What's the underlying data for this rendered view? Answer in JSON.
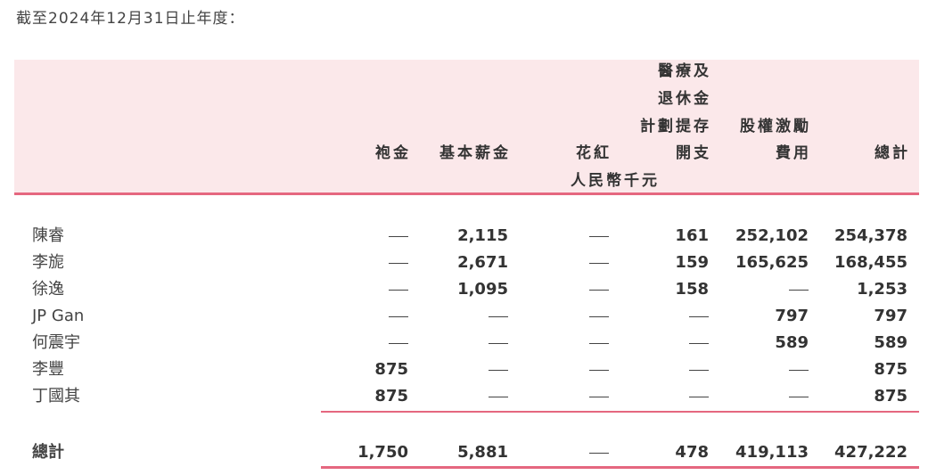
{
  "caption": "截至2024年12月31日止年度：",
  "unit": "人民幣千元",
  "headers": [
    [
      "袍金"
    ],
    [
      "基本薪金"
    ],
    [
      "花紅"
    ],
    [
      "醫療及",
      "退休金",
      "計劃提存",
      "開支"
    ],
    [
      "股權激勵",
      "費用"
    ],
    [
      "總計"
    ]
  ],
  "rows": [
    {
      "name": "陳睿",
      "values": [
        "—",
        "2,115",
        "—",
        "161",
        "252,102",
        "254,378"
      ]
    },
    {
      "name": "李旎",
      "values": [
        "—",
        "2,671",
        "—",
        "159",
        "165,625",
        "168,455"
      ]
    },
    {
      "name": "徐逸",
      "values": [
        "—",
        "1,095",
        "—",
        "158",
        "—",
        "1,253"
      ]
    },
    {
      "name": "JP Gan",
      "values": [
        "—",
        "—",
        "—",
        "—",
        "797",
        "797"
      ]
    },
    {
      "name": "何震宇",
      "values": [
        "—",
        "—",
        "—",
        "—",
        "589",
        "589"
      ]
    },
    {
      "name": "李豐",
      "values": [
        "875",
        "—",
        "—",
        "—",
        "—",
        "875"
      ]
    },
    {
      "name": "丁國其",
      "values": [
        "875",
        "—",
        "—",
        "—",
        "—",
        "875"
      ]
    }
  ],
  "total": {
    "name": "總計",
    "values": [
      "1,750",
      "5,881",
      "—",
      "478",
      "419,113",
      "427,222"
    ]
  },
  "colors": {
    "header_bg": "#fbe8ea",
    "rule": "#e5677f"
  }
}
